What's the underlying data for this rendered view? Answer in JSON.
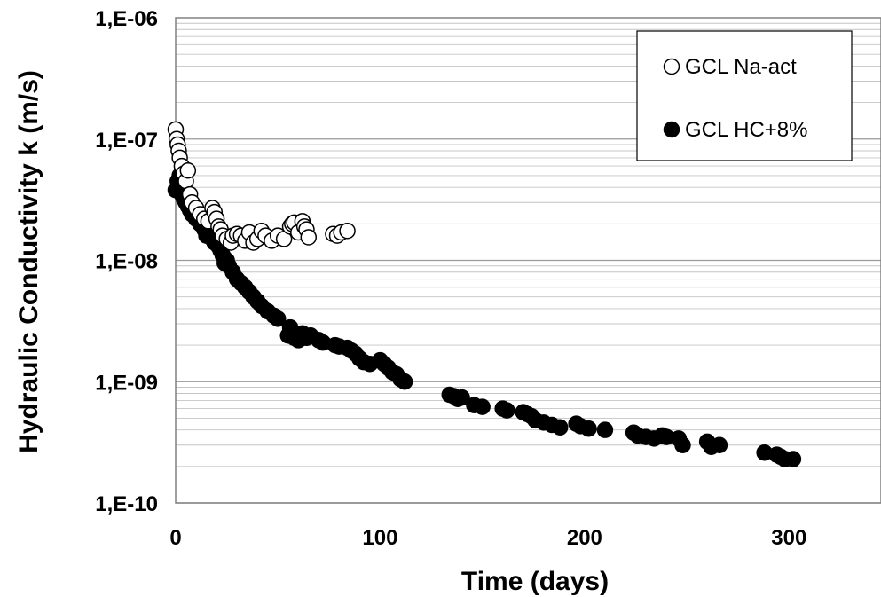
{
  "chart_data": {
    "type": "scatter",
    "xlabel": "Time (days)",
    "ylabel": "Hydraulic Conductivity k (m/s)",
    "x_ticks": [
      "0",
      "100",
      "200",
      "300"
    ],
    "y_ticks": [
      "1,E-10",
      "1,E-09",
      "1,E-08",
      "1,E-07",
      "1,E-06"
    ],
    "xlim": [
      0,
      345
    ],
    "ylim": [
      1e-10,
      1e-06
    ],
    "y_scale": "log",
    "grid": "horizontal minor and major",
    "legend_position": "top-right",
    "series": [
      {
        "name": "GCL Na-act",
        "marker": "open-circle",
        "color": "#000000",
        "fill": "#ffffff",
        "x": [
          0,
          0.5,
          1,
          1.5,
          2,
          3,
          4,
          5,
          6,
          7,
          8,
          10,
          12,
          14,
          16,
          18,
          19,
          20,
          21,
          22,
          23,
          25,
          27,
          28,
          30,
          32,
          34,
          36,
          38,
          40,
          42,
          44,
          47,
          50,
          53,
          56,
          57,
          58,
          60,
          62,
          63,
          64,
          65,
          77,
          79,
          81,
          84
        ],
        "y": [
          1.2e-07,
          1e-07,
          9e-08,
          8e-08,
          7e-08,
          6e-08,
          5.2e-08,
          4.5e-08,
          5.5e-08,
          3.5e-08,
          3e-08,
          2.7e-08,
          2.4e-08,
          2.2e-08,
          2.1e-08,
          2.7e-08,
          2.5e-08,
          2.2e-08,
          1.9e-08,
          1.8e-08,
          1.6e-08,
          1.5e-08,
          1.4e-08,
          1.6e-08,
          1.65e-08,
          1.6e-08,
          1.45e-08,
          1.7e-08,
          1.4e-08,
          1.5e-08,
          1.75e-08,
          1.6e-08,
          1.45e-08,
          1.6e-08,
          1.5e-08,
          1.9e-08,
          2e-08,
          2.05e-08,
          1.7e-08,
          2.1e-08,
          1.9e-08,
          1.8e-08,
          1.55e-08,
          1.65e-08,
          1.6e-08,
          1.7e-08,
          1.75e-08
        ]
      },
      {
        "name": "GCL HC+8%",
        "marker": "filled-circle",
        "color": "#000000",
        "fill": "#000000",
        "x": [
          0,
          1,
          2,
          3,
          4,
          5,
          6,
          7,
          8,
          10,
          12,
          14,
          15,
          16,
          17,
          18,
          19,
          20,
          21,
          22,
          23,
          24,
          25,
          26,
          28,
          30,
          32,
          34,
          36,
          38,
          40,
          42,
          45,
          48,
          50,
          55,
          56,
          58,
          60,
          62,
          64,
          66,
          70,
          72,
          78,
          80,
          84,
          86,
          88,
          90,
          92,
          95,
          100,
          102,
          104,
          106,
          108,
          110,
          112,
          134,
          136,
          138,
          140,
          146,
          150,
          160,
          162,
          170,
          172,
          174,
          176,
          180,
          184,
          188,
          196,
          198,
          202,
          210,
          224,
          226,
          230,
          234,
          238,
          240,
          246,
          248,
          260,
          262,
          266,
          288,
          294,
          296,
          298,
          302
        ],
        "y": [
          3.8e-08,
          4.5e-08,
          5e-08,
          3.5e-08,
          3.2e-08,
          3e-08,
          2.8e-08,
          2.6e-08,
          2.4e-08,
          2.2e-08,
          2e-08,
          1.8e-08,
          1.6e-08,
          1.75e-08,
          1.55e-08,
          1.5e-08,
          1.4e-08,
          1.8e-08,
          1.3e-08,
          1.2e-08,
          1.1e-08,
          9.5e-09,
          1e-08,
          9e-09,
          8e-09,
          7e-09,
          6.5e-09,
          6e-09,
          5.5e-09,
          5e-09,
          4.6e-09,
          4.2e-09,
          3.8e-09,
          3.5e-09,
          3.3e-09,
          2.4e-09,
          2.8e-09,
          2.3e-09,
          2.2e-09,
          2.5e-09,
          2.3e-09,
          2.4e-09,
          2.2e-09,
          2.1e-09,
          2e-09,
          1.95e-09,
          1.9e-09,
          1.8e-09,
          1.7e-09,
          1.55e-09,
          1.45e-09,
          1.4e-09,
          1.5e-09,
          1.4e-09,
          1.3e-09,
          1.2e-09,
          1.15e-09,
          1.05e-09,
          1e-09,
          7.8e-10,
          7.6e-10,
          7.2e-10,
          7.4e-10,
          6.4e-10,
          6.2e-10,
          6e-10,
          5.8e-10,
          5.6e-10,
          5.4e-10,
          5.2e-10,
          4.8e-10,
          4.6e-10,
          4.4e-10,
          4.2e-10,
          4.5e-10,
          4.3e-10,
          4.1e-10,
          4e-10,
          3.8e-10,
          3.6e-10,
          3.5e-10,
          3.4e-10,
          3.6e-10,
          3.5e-10,
          3.4e-10,
          3e-10,
          3.2e-10,
          2.9e-10,
          3e-10,
          2.6e-10,
          2.5e-10,
          2.4e-10,
          2.3e-10,
          2.3e-10
        ]
      }
    ]
  }
}
